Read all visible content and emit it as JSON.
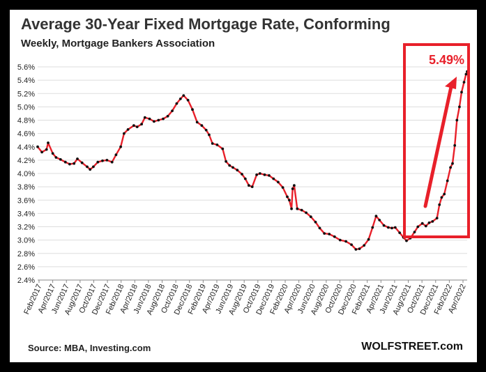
{
  "header": {
    "title": "Average 30-Year Fixed Mortgage Rate, Conforming",
    "subtitle": "Weekly, Mortgage Bankers Association"
  },
  "footer": {
    "source": "Source: MBA, Investing.com",
    "brand": "WOLFSTREET.com"
  },
  "annotation": {
    "callout": "5.49%",
    "box_color": "#e8202a",
    "arrow_color": "#e8202a"
  },
  "colors": {
    "line": "#e8202a",
    "markers": "#111111",
    "grid": "#dddddd"
  },
  "chart_data": {
    "type": "line",
    "title": "Average 30-Year Fixed Mortgage Rate, Conforming",
    "subtitle": "Weekly, Mortgage Bankers Association",
    "ylabel": "",
    "xlabel": "",
    "ylim": [
      2.4,
      5.6
    ],
    "y_ticks": [
      "5.6%",
      "5.4%",
      "5.2%",
      "5.0%",
      "4.8%",
      "4.6%",
      "4.4%",
      "4.2%",
      "4.0%",
      "3.8%",
      "3.6%",
      "3.4%",
      "3.2%",
      "3.0%",
      "2.8%",
      "2.6%",
      "2.4%"
    ],
    "x_ticks": [
      "Feb/2017",
      "Apr/2017",
      "Jun/2017",
      "Aug/2017",
      "Oct/2017",
      "Dec/2017",
      "Feb/2018",
      "Apr/2018",
      "Jun/2018",
      "Aug/2018",
      "Oct/2018",
      "Dec/2018",
      "Feb/2019",
      "Apr/2019",
      "Jun/2019",
      "Aug/2019",
      "Oct/2019",
      "Dec/2019",
      "Feb/2020",
      "Apr/2020",
      "Jun/2020",
      "Aug/2020",
      "Oct/2020",
      "Dec/2020",
      "Feb/2021",
      "Apr/2021",
      "Jun/2021",
      "Aug/2021",
      "Oct/2021",
      "Dec/2021",
      "Feb/2022",
      "Apr/2022"
    ],
    "grid": true,
    "series": [
      {
        "x": [
          "2017-01-27",
          "2017-02-15",
          "2017-03-08",
          "2017-03-15",
          "2017-04-05",
          "2017-04-20",
          "2017-05-10",
          "2017-06-01",
          "2017-06-20",
          "2017-07-10",
          "2017-07-25",
          "2017-08-15",
          "2017-09-07",
          "2017-09-20",
          "2017-10-05",
          "2017-10-25",
          "2017-11-15",
          "2017-12-05",
          "2017-12-28",
          "2018-01-15",
          "2018-02-05",
          "2018-02-20",
          "2018-03-10",
          "2018-04-05",
          "2018-04-20",
          "2018-05-10",
          "2018-05-25",
          "2018-06-15",
          "2018-07-05",
          "2018-07-25",
          "2018-08-15",
          "2018-09-05",
          "2018-09-25",
          "2018-10-15",
          "2018-11-01",
          "2018-11-15",
          "2018-12-05",
          "2018-12-25",
          "2019-01-15",
          "2019-02-05",
          "2019-02-25",
          "2019-03-10",
          "2019-03-25",
          "2019-04-15",
          "2019-05-10",
          "2019-05-25",
          "2019-06-10",
          "2019-06-25",
          "2019-07-15",
          "2019-08-05",
          "2019-08-20",
          "2019-09-05",
          "2019-09-20",
          "2019-10-10",
          "2019-10-25",
          "2019-11-15",
          "2019-12-05",
          "2019-12-25",
          "2020-01-15",
          "2020-02-05",
          "2020-02-25",
          "2020-03-05",
          "2020-03-15",
          "2020-03-20",
          "2020-03-27",
          "2020-04-10",
          "2020-04-30",
          "2020-05-20",
          "2020-06-10",
          "2020-07-01",
          "2020-07-20",
          "2020-08-10",
          "2020-09-01",
          "2020-09-25",
          "2020-10-20",
          "2020-11-15",
          "2020-12-10",
          "2020-12-30",
          "2021-01-15",
          "2021-02-05",
          "2021-02-25",
          "2021-03-15",
          "2021-03-31",
          "2021-04-15",
          "2021-05-05",
          "2021-05-25",
          "2021-06-10",
          "2021-06-25",
          "2021-07-15",
          "2021-08-01",
          "2021-08-15",
          "2021-09-01",
          "2021-09-20",
          "2021-10-05",
          "2021-10-25",
          "2021-11-10",
          "2021-11-25",
          "2021-12-10",
          "2021-12-30",
          "2022-01-10",
          "2022-01-20",
          "2022-02-01",
          "2022-02-15",
          "2022-03-01",
          "2022-03-10",
          "2022-03-20",
          "2022-03-30",
          "2022-04-10",
          "2022-04-20",
          "2022-05-01",
          "2022-05-10",
          "2022-05-15"
        ],
        "y": [
          4.4,
          4.32,
          4.36,
          4.46,
          4.3,
          4.24,
          4.21,
          4.17,
          4.14,
          4.15,
          4.22,
          4.16,
          4.1,
          4.06,
          4.1,
          4.17,
          4.19,
          4.2,
          4.17,
          4.28,
          4.4,
          4.6,
          4.66,
          4.72,
          4.7,
          4.74,
          4.84,
          4.82,
          4.78,
          4.8,
          4.82,
          4.86,
          4.94,
          5.05,
          5.12,
          5.17,
          5.1,
          4.96,
          4.77,
          4.72,
          4.65,
          4.58,
          4.45,
          4.43,
          4.37,
          4.18,
          4.12,
          4.09,
          4.05,
          3.99,
          3.92,
          3.82,
          3.8,
          3.98,
          4.0,
          3.98,
          3.97,
          3.92,
          3.87,
          3.79,
          3.65,
          3.6,
          3.47,
          3.77,
          3.82,
          3.47,
          3.45,
          3.41,
          3.35,
          3.27,
          3.18,
          3.1,
          3.09,
          3.05,
          3.0,
          2.98,
          2.93,
          2.86,
          2.87,
          2.92,
          3.01,
          3.19,
          3.36,
          3.3,
          3.22,
          3.19,
          3.18,
          3.19,
          3.11,
          3.04,
          2.99,
          3.03,
          3.12,
          3.2,
          3.25,
          3.21,
          3.26,
          3.28,
          3.33,
          3.53,
          3.64,
          3.69,
          3.89,
          4.09,
          4.15,
          4.42,
          4.8,
          5.0,
          5.22,
          5.37,
          5.49,
          5.53
        ]
      }
    ]
  }
}
